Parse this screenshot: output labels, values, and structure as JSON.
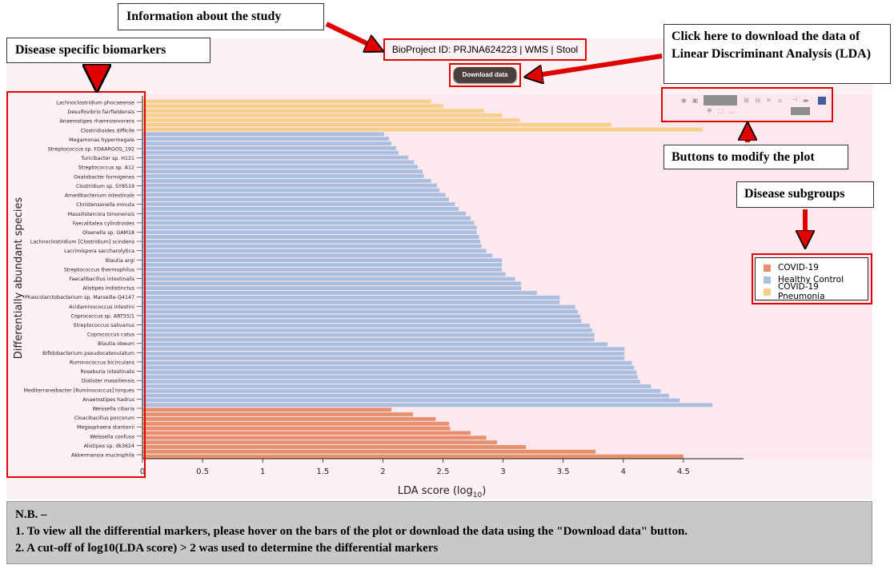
{
  "annotations": {
    "study_info": "Information about the study",
    "biomarkers": "Disease specific  biomarkers",
    "download_help": "Click here to download the data of Linear Discriminant Analysis (LDA)",
    "modify_plot": "Buttons to modify the plot",
    "subgroups": "Disease subgroups"
  },
  "bioproject_label": "BioProject ID: PRJNA624223 | WMS | Stool",
  "download_button": "Download data",
  "colors": {
    "covid": "#e8906e",
    "healthy": "#aabfdf",
    "pneumonia": "#f6cf8c"
  },
  "modebar_icons": [
    "camera-icon",
    "disk-icon",
    "zoom-icon",
    "zoom-in-icon",
    "zoom-out-icon",
    "autoscale-icon",
    "home-icon",
    "spike-icon",
    "compare-icon",
    "bar-chart-icon",
    "pan-icon",
    "select-icon",
    "lasso-icon",
    "toggle-icon"
  ],
  "legend": [
    {
      "name": "COVID-19",
      "color": "#e8906e"
    },
    {
      "name": "Healthy Control",
      "color": "#aabfdf"
    },
    {
      "name": "COVID-19 Pneumonia",
      "color": "#f6cf8c"
    }
  ],
  "note": {
    "title": "N.B. –",
    "line1": "1. To view all the differential markers, please hover on the bars of the plot or download the data using the \"Download data\" button.",
    "line2": "2. A cut-off of log10(LDA score) > 2 was used to determine the differential markers"
  },
  "chart_data": {
    "type": "bar",
    "orientation": "horizontal",
    "xlabel": "LDA score (log",
    "xlabel_sub": "10",
    "xlabel_end": ")",
    "ylabel": "Differentially abundant species",
    "xlim": [
      0,
      5
    ],
    "xticks": [
      "0",
      "0.5",
      "1",
      "1.5",
      "2",
      "2.5",
      "3",
      "3.5",
      "4",
      "4.5"
    ],
    "bars": [
      {
        "label": "Lachnoclostridium phocaeense",
        "value": 2.4,
        "group": "pneumonia"
      },
      {
        "label": "Desulfovibrio fairfieldensis",
        "value": 2.5,
        "group": "pneumonia"
      },
      {
        "label": "Anaerostipes rhamnosivorans",
        "value": 2.84,
        "group": "pneumonia"
      },
      {
        "label": "Clostridioides difficile",
        "value": 2.99,
        "group": "pneumonia"
      },
      {
        "label": "",
        "value": 3.14,
        "group": "pneumonia"
      },
      {
        "label": "",
        "value": 3.9,
        "group": "pneumonia"
      },
      {
        "label": "",
        "value": 4.66,
        "group": "pneumonia"
      },
      {
        "label": "Megamonas hypermegale",
        "value": 2.01,
        "group": "healthy"
      },
      {
        "label": "Streptococcus sp. FDAARGOS_192",
        "value": 2.05,
        "group": "healthy"
      },
      {
        "label": "Turicibacter sp. H121",
        "value": 2.07,
        "group": "healthy"
      },
      {
        "label": "Streptococcus sp. A12",
        "value": 2.11,
        "group": "healthy"
      },
      {
        "label": "Oxalobacter formigenes",
        "value": 2.13,
        "group": "healthy"
      },
      {
        "label": "Clostridium sp. SY8519",
        "value": 2.21,
        "group": "healthy"
      },
      {
        "label": "Amedibacterium intestinale",
        "value": 2.26,
        "group": "healthy"
      },
      {
        "label": "Christensenella minuta",
        "value": 2.29,
        "group": "healthy"
      },
      {
        "label": "Massilistercora timonensis",
        "value": 2.33,
        "group": "healthy"
      },
      {
        "label": "Faecalitalea cylindroides",
        "value": 2.34,
        "group": "healthy"
      },
      {
        "label": "Olsenella sp. GAM18",
        "value": 2.4,
        "group": "healthy"
      },
      {
        "label": "Lachnoclostridium [Clostridium] scindens",
        "value": 2.45,
        "group": "healthy"
      },
      {
        "label": "Lacrimispora saccharolytica",
        "value": 2.47,
        "group": "healthy"
      },
      {
        "label": "Blautia argi",
        "value": 2.52,
        "group": "healthy"
      },
      {
        "label": "Streptococcus thermophilus",
        "value": 2.55,
        "group": "healthy"
      },
      {
        "label": "Faecalibacillus intestinalis",
        "value": 2.6,
        "group": "healthy"
      },
      {
        "label": "Alistipes indistinctus",
        "value": 2.63,
        "group": "healthy"
      },
      {
        "label": "Phascolarctobacterium sp. Marseille-Q4147",
        "value": 2.69,
        "group": "healthy"
      },
      {
        "label": "Acidaminococcus intestini",
        "value": 2.73,
        "group": "healthy"
      },
      {
        "label": "Coprococcus sp. ART55/1",
        "value": 2.76,
        "group": "healthy"
      },
      {
        "label": "Streptococcus salivarius",
        "value": 2.78,
        "group": "healthy"
      },
      {
        "label": "Coprococcus catus",
        "value": 2.78,
        "group": "healthy"
      },
      {
        "label": "Blautia obeum",
        "value": 2.8,
        "group": "healthy"
      },
      {
        "label": "Bifidobacterium pseudocatenulatum",
        "value": 2.81,
        "group": "healthy"
      },
      {
        "label": "Ruminococcus bicirculans",
        "value": 2.82,
        "group": "healthy"
      },
      {
        "label": "Roseburia intestinalis",
        "value": 2.86,
        "group": "healthy"
      },
      {
        "label": "Dialister massiliensis",
        "value": 2.91,
        "group": "healthy"
      },
      {
        "label": "Mediterraneibacter [Ruminococcus] torques",
        "value": 2.99,
        "group": "healthy"
      },
      {
        "label": "Anaerostipes hadrus",
        "value": 2.99,
        "group": "healthy"
      },
      {
        "label": "",
        "value": 2.99,
        "group": "healthy"
      },
      {
        "label": "",
        "value": 3.02,
        "group": "healthy"
      },
      {
        "label": "",
        "value": 3.1,
        "group": "healthy"
      },
      {
        "label": "",
        "value": 3.15,
        "group": "healthy"
      },
      {
        "label": "",
        "value": 3.15,
        "group": "healthy"
      },
      {
        "label": "",
        "value": 3.28,
        "group": "healthy"
      },
      {
        "label": "",
        "value": 3.47,
        "group": "healthy"
      },
      {
        "label": "",
        "value": 3.47,
        "group": "healthy"
      },
      {
        "label": "",
        "value": 3.6,
        "group": "healthy"
      },
      {
        "label": "",
        "value": 3.62,
        "group": "healthy"
      },
      {
        "label": "",
        "value": 3.64,
        "group": "healthy"
      },
      {
        "label": "",
        "value": 3.65,
        "group": "healthy"
      },
      {
        "label": "",
        "value": 3.72,
        "group": "healthy"
      },
      {
        "label": "",
        "value": 3.74,
        "group": "healthy"
      },
      {
        "label": "",
        "value": 3.76,
        "group": "healthy"
      },
      {
        "label": "",
        "value": 3.76,
        "group": "healthy"
      },
      {
        "label": "",
        "value": 3.87,
        "group": "healthy"
      },
      {
        "label": "",
        "value": 4.01,
        "group": "healthy"
      },
      {
        "label": "",
        "value": 4.01,
        "group": "healthy"
      },
      {
        "label": "",
        "value": 4.01,
        "group": "healthy"
      },
      {
        "label": "",
        "value": 4.07,
        "group": "healthy"
      },
      {
        "label": "",
        "value": 4.09,
        "group": "healthy"
      },
      {
        "label": "",
        "value": 4.11,
        "group": "healthy"
      },
      {
        "label": "",
        "value": 4.12,
        "group": "healthy"
      },
      {
        "label": "",
        "value": 4.14,
        "group": "healthy"
      },
      {
        "label": "",
        "value": 4.23,
        "group": "healthy"
      },
      {
        "label": "",
        "value": 4.31,
        "group": "healthy"
      },
      {
        "label": "",
        "value": 4.38,
        "group": "healthy"
      },
      {
        "label": "",
        "value": 4.47,
        "group": "healthy"
      },
      {
        "label": "",
        "value": 4.74,
        "group": "healthy"
      },
      {
        "label": "Weissella cibaria",
        "value": 2.07,
        "group": "covid"
      },
      {
        "label": "Cloacibacillus porcorum",
        "value": 2.25,
        "group": "covid"
      },
      {
        "label": "Megasphaera stantonii",
        "value": 2.44,
        "group": "covid"
      },
      {
        "label": "Weissella confusa",
        "value": 2.55,
        "group": "covid"
      },
      {
        "label": "Alistipes sp. dk3624",
        "value": 2.56,
        "group": "covid"
      },
      {
        "label": "Akkermansia muciniphila",
        "value": 2.73,
        "group": "covid"
      },
      {
        "label": "",
        "value": 2.86,
        "group": "covid"
      },
      {
        "label": "",
        "value": 2.95,
        "group": "covid"
      },
      {
        "label": "",
        "value": 3.19,
        "group": "covid"
      },
      {
        "label": "",
        "value": 3.77,
        "group": "covid"
      },
      {
        "label": "",
        "value": 4.5,
        "group": "covid"
      }
    ]
  }
}
